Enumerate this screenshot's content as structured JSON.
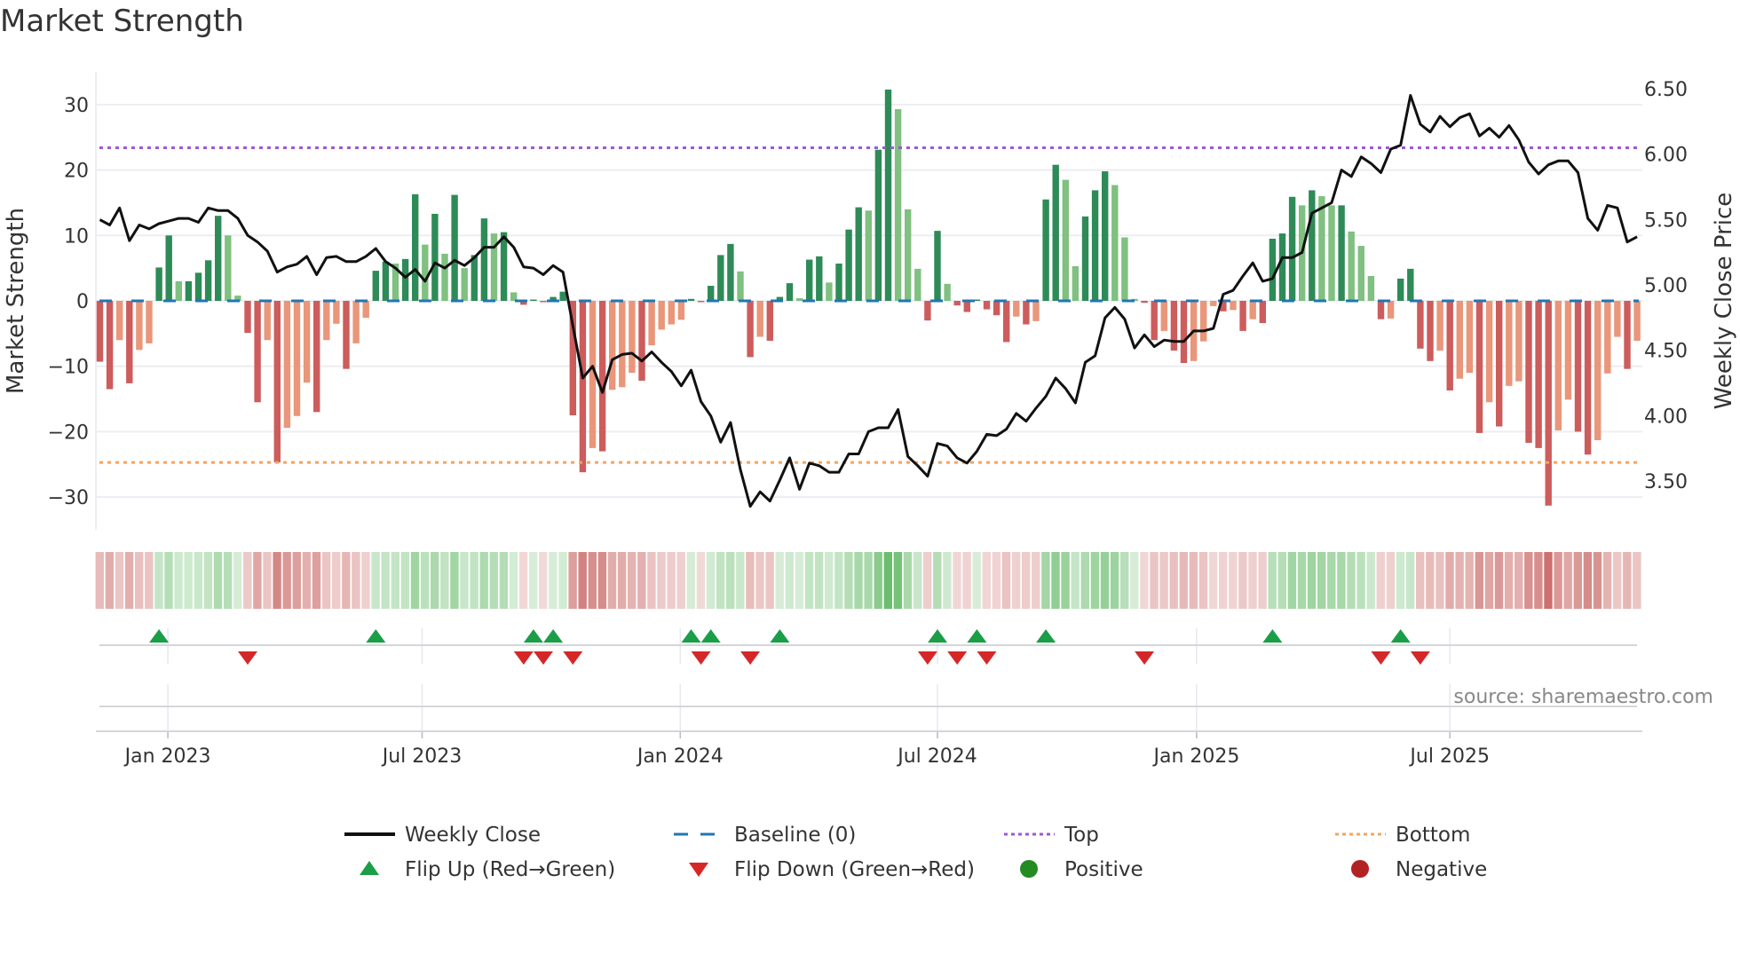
{
  "title": "Market Strength",
  "source": "source: sharemaestro.com",
  "colors": {
    "pos_strong": "#2e8b57",
    "pos_weak": "#80c080",
    "neg_strong": "#cd5c5c",
    "neg_weak": "#e9967a",
    "heat_pos": "#4caf50",
    "heat_neg": "#c0504d",
    "price": "#111111",
    "baseline": "#1f77b4",
    "top": "#9b59d6",
    "bottom": "#f4a460",
    "flip_up": "#1a9e47",
    "flip_down": "#d62728",
    "positive": "#228b22",
    "negative": "#b22222"
  },
  "chart_data": {
    "type": "bar+line",
    "title": "Market Strength",
    "ylabel": "Market Strength",
    "y2label": "Weekly Close Price",
    "ylim": [
      -35,
      35
    ],
    "y2lim": [
      3.25,
      6.75
    ],
    "yticks": [
      30,
      20,
      10,
      0,
      -10,
      -20,
      -30
    ],
    "yticklabels": [
      "30",
      "20",
      "10",
      "0",
      "−10",
      "−20",
      "−30"
    ],
    "y2ticks": [
      6.5,
      6.0,
      5.5,
      5.0,
      4.5,
      4.0,
      3.5
    ],
    "y2ticklabels": [
      "6.50",
      "6.00",
      "5.50",
      "5.00",
      "4.50",
      "4.00",
      "3.50"
    ],
    "xticks": [
      7.9,
      33.7,
      59.9,
      86.0,
      112.3,
      138.0
    ],
    "xticklabels": [
      "Jan 2023",
      "Jul 2023",
      "Jan 2024",
      "Jul 2024",
      "Jan 2025",
      "Jul 2025"
    ],
    "top_level": 23.4,
    "bottom_level": -24.7,
    "baseline": 0,
    "strength": [
      -9.3,
      -13.5,
      -6,
      -12.6,
      -7.5,
      -6.5,
      5.1,
      10,
      3,
      3,
      4.3,
      6.2,
      13,
      10,
      0.8,
      -4.9,
      -15.5,
      -6,
      -24.7,
      -19.4,
      -17.6,
      -12.5,
      -17,
      -6,
      -3.5,
      -10.4,
      -6.5,
      -2.6,
      4.6,
      6,
      5.7,
      6.4,
      16.3,
      8.6,
      13.3,
      7.2,
      16.2,
      5,
      7,
      12.6,
      10.3,
      10.5,
      1.3,
      -0.6,
      0.2,
      -0.2,
      0.6,
      1.4,
      -17.5,
      -26.2,
      -22.5,
      -23,
      -13.6,
      -13.2,
      -11,
      -12.2,
      -6.8,
      -4.4,
      -3.6,
      -2.9,
      0.3,
      -0.2,
      2.3,
      7,
      8.7,
      4.5,
      -8.6,
      -5.5,
      -6.1,
      0.6,
      2.7,
      0.4,
      6.3,
      6.8,
      2.8,
      5.7,
      10.9,
      14.3,
      13.8,
      23.1,
      32.3,
      29.3,
      14,
      4.9,
      -3,
      10.7,
      2.6,
      -0.7,
      -1.7,
      0.2,
      -1.3,
      -2.2,
      -6.3,
      -2.4,
      -3.6,
      -3.1,
      15.5,
      20.8,
      18.5,
      5.3,
      12.9,
      16.9,
      19.8,
      17.7,
      9.7,
      0.3,
      -0.3,
      -6,
      -4.6,
      -7.6,
      -9.5,
      -9.2,
      -6.2,
      -0.8,
      -1.6,
      -1.4,
      -4.6,
      -2.8,
      -3.4,
      9.5,
      10.3,
      15.9,
      14.6,
      16.9,
      16,
      14.6,
      14.6,
      10.6,
      8.4,
      3.8,
      -2.8,
      -2.7,
      3.4,
      4.9,
      -7.3,
      -9.2,
      -7.6,
      -13.7,
      -11.9,
      -11,
      -20.2,
      -15.5,
      -19.2,
      -13,
      -12.3,
      -21.7,
      -22.5,
      -31.3,
      -19.8,
      -15.1,
      -20,
      -23.5,
      -21.3,
      -11.1,
      -5.5,
      -10.4,
      -6.1
    ],
    "weekly_close": [
      5.62,
      5.58,
      5.71,
      5.46,
      5.58,
      5.55,
      5.59,
      5.61,
      5.63,
      5.63,
      5.6,
      5.71,
      5.69,
      5.69,
      5.63,
      5.5,
      5.45,
      5.38,
      5.22,
      5.26,
      5.28,
      5.34,
      5.2,
      5.33,
      5.34,
      5.3,
      5.3,
      5.34,
      5.4,
      5.3,
      5.25,
      5.18,
      5.24,
      5.15,
      5.29,
      5.25,
      5.31,
      5.27,
      5.33,
      5.41,
      5.41,
      5.49,
      5.41,
      5.26,
      5.25,
      5.2,
      5.27,
      5.22,
      4.81,
      4.41,
      4.5,
      4.3,
      4.55,
      4.59,
      4.6,
      4.54,
      4.61,
      4.53,
      4.46,
      4.35,
      4.47,
      4.23,
      4.12,
      3.92,
      4.07,
      3.71,
      3.43,
      3.54,
      3.47,
      3.63,
      3.8,
      3.56,
      3.76,
      3.74,
      3.69,
      3.69,
      3.83,
      3.83,
      4.0,
      4.03,
      4.03,
      4.17,
      3.81,
      3.74,
      3.66,
      3.91,
      3.89,
      3.8,
      3.76,
      3.85,
      3.98,
      3.97,
      4.02,
      4.14,
      4.08,
      4.18,
      4.27,
      4.41,
      4.33,
      4.22,
      4.53,
      4.58,
      4.87,
      4.95,
      4.86,
      4.64,
      4.74,
      4.65,
      4.7,
      4.69,
      4.69,
      4.77,
      4.77,
      4.79,
      5.05,
      5.08,
      5.19,
      5.29,
      5.15,
      5.17,
      5.33,
      5.33,
      5.37,
      5.67,
      5.71,
      5.75,
      6.0,
      5.95,
      6.1,
      6.05,
      5.98,
      6.16,
      6.19,
      6.57,
      6.35,
      6.29,
      6.41,
      6.33,
      6.4,
      6.43,
      6.26,
      6.32,
      6.25,
      6.34,
      6.23,
      6.06,
      5.97,
      6.04,
      6.07,
      6.07,
      5.98,
      5.63,
      5.54,
      5.73,
      5.71,
      5.45,
      5.49
    ],
    "flip_up_weeks": [
      7,
      29,
      45,
      47,
      61,
      63,
      70,
      86,
      90,
      97,
      120,
      133
    ],
    "flip_down_weeks": [
      16,
      44,
      46,
      49,
      62,
      67,
      85,
      88,
      91,
      107,
      131,
      135
    ],
    "legend": [
      {
        "label": "Weekly Close",
        "symbol": "line"
      },
      {
        "label": "Baseline (0)",
        "symbol": "dash"
      },
      {
        "label": "Top",
        "symbol": "dot-top"
      },
      {
        "label": "Bottom",
        "symbol": "dot-bottom"
      },
      {
        "label": "Flip Up (Red→Green)",
        "symbol": "tri-up"
      },
      {
        "label": "Flip Down (Green→Red)",
        "symbol": "tri-down"
      },
      {
        "label": "Positive",
        "symbol": "dot-pos"
      },
      {
        "label": "Negative",
        "symbol": "dot-neg"
      }
    ],
    "legend_placement": "bottom"
  }
}
